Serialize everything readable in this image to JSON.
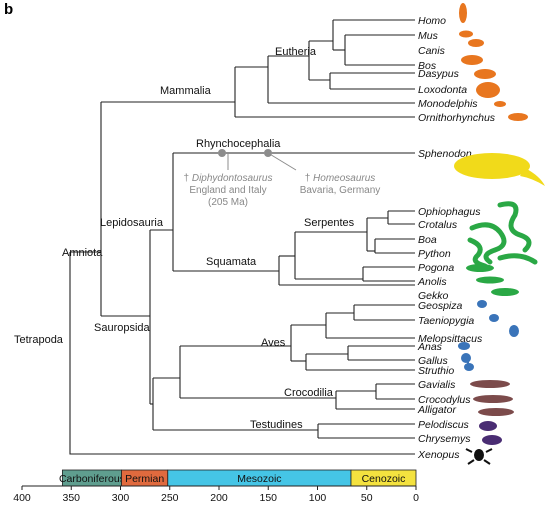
{
  "panel_label": "b",
  "taxa": [
    {
      "name": "Homo",
      "group": "mammal"
    },
    {
      "name": "Mus",
      "group": "mammal"
    },
    {
      "name": "Canis",
      "group": "mammal"
    },
    {
      "name": "Bos",
      "group": "mammal"
    },
    {
      "name": "Dasypus",
      "group": "mammal"
    },
    {
      "name": "Loxodonta",
      "group": "mammal"
    },
    {
      "name": "Monodelphis",
      "group": "mammal"
    },
    {
      "name": "Ornithorhynchus",
      "group": "mammal"
    },
    {
      "name": "Sphenodon",
      "group": "rhynchocephalian"
    },
    {
      "name": "Ophiophagus",
      "group": "squamate"
    },
    {
      "name": "Crotalus",
      "group": "squamate"
    },
    {
      "name": "Boa",
      "group": "squamate"
    },
    {
      "name": "Python",
      "group": "squamate"
    },
    {
      "name": "Pogona",
      "group": "squamate"
    },
    {
      "name": "Anolis",
      "group": "squamate"
    },
    {
      "name": "Gekko",
      "group": "squamate"
    },
    {
      "name": "Geospiza",
      "group": "bird"
    },
    {
      "name": "Taeniopygia",
      "group": "bird"
    },
    {
      "name": "Melopsittacus",
      "group": "bird"
    },
    {
      "name": "Anas",
      "group": "bird"
    },
    {
      "name": "Gallus",
      "group": "bird"
    },
    {
      "name": "Struthio",
      "group": "bird"
    },
    {
      "name": "Gavialis",
      "group": "crocodilian"
    },
    {
      "name": "Crocodylus",
      "group": "crocodilian"
    },
    {
      "name": "Alligator",
      "group": "crocodilian"
    },
    {
      "name": "Pelodiscus",
      "group": "turtle"
    },
    {
      "name": "Chrysemys",
      "group": "turtle"
    },
    {
      "name": "Xenopus",
      "group": "amphibian"
    }
  ],
  "clades": {
    "tetrapoda": "Tetrapoda",
    "amniota": "Amniota",
    "mammalia": "Mammalia",
    "eutheria": "Eutheria",
    "lepidosauria": "Lepidosauria",
    "sauropsida": "Sauropsida",
    "rhynchocephalia": "Rhynchocephalia",
    "squamata": "Squamata",
    "serpentes": "Serpentes",
    "aves": "Aves",
    "crocodilia": "Crocodilia",
    "testudines": "Testudines"
  },
  "fossils": {
    "diphydontosaurus": {
      "name": "Diphydontosaurus",
      "dagger": "†",
      "place": "England and Italy",
      "age": "(205 Ma)"
    },
    "homeosaurus": {
      "name": "Homeosaurus",
      "dagger": "†",
      "place": "Bavaria, Germany"
    }
  },
  "timescale": {
    "axis_max_ma": 400,
    "axis_min_ma": 0,
    "periods": [
      {
        "label": "Carboniferous",
        "start_ma": 359,
        "end_ma": 299,
        "color": "#5f9e8f"
      },
      {
        "label": "Permian",
        "start_ma": 299,
        "end_ma": 252,
        "color": "#e06a3e"
      },
      {
        "label": "Mesozoic",
        "start_ma": 252,
        "end_ma": 66,
        "color": "#45c5e6"
      },
      {
        "label": "Cenozoic",
        "start_ma": 66,
        "end_ma": 0,
        "color": "#f4e23f"
      }
    ],
    "ticks": [
      "400",
      "350",
      "300",
      "250",
      "200",
      "150",
      "100",
      "50",
      "0"
    ]
  },
  "colors": {
    "mammal": "#e8761f",
    "rhynchocephalian": "#f1da1a",
    "squamate": "#2aa845",
    "bird": "#3a74b9",
    "crocodilian": "#7c4b4b",
    "turtle": "#4a2d73",
    "amphibian": "#111111",
    "branch": "#222222",
    "fossil": "#8c8c8c"
  }
}
